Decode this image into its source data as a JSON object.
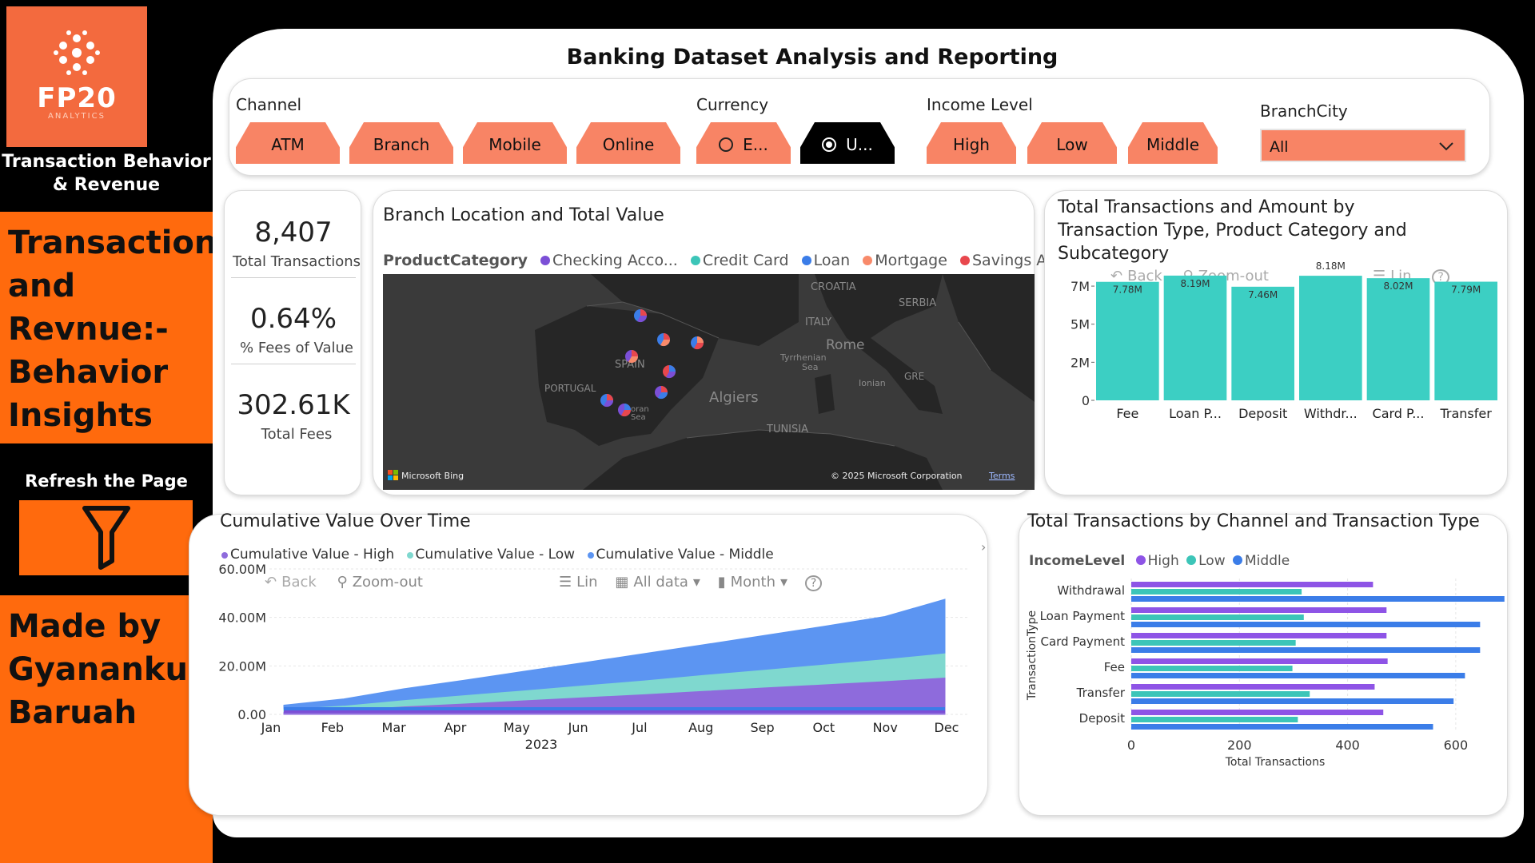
{
  "sidebar": {
    "logo_text": "FP20",
    "logo_sub": "ANALYTICS",
    "brand_line1": "Transaction Behavior",
    "brand_line2": "& Revenue",
    "hero_lines": [
      "Transactions",
      "and Revnue:-",
      "Behavior",
      "Insights"
    ],
    "refresh_label": "Refresh the Page",
    "made_lines": [
      "Made by",
      "Gyanankur",
      "Baruah"
    ]
  },
  "page_title": "Banking Dataset Analysis and Reporting",
  "slicers": {
    "channel": {
      "title": "Channel",
      "options": [
        "ATM",
        "Branch",
        "Mobile",
        "Online"
      ]
    },
    "currency": {
      "title": "Currency",
      "options": [
        "E...",
        "U..."
      ],
      "selected": "U..."
    },
    "income": {
      "title": "Income Level",
      "options": [
        "High",
        "Low",
        "Middle"
      ]
    },
    "branch_city": {
      "title": "BranchCity",
      "value": "All"
    }
  },
  "kpis": [
    {
      "value": "8,407",
      "label": "Total Transactions"
    },
    {
      "value": "0.64%",
      "label": "% Fees of Value"
    },
    {
      "value": "302.61K",
      "label": "Total Fees"
    }
  ],
  "map": {
    "title": "Branch Location and Total Value",
    "legend_title": "ProductCategory",
    "legend": [
      {
        "name": "Checking Acco...",
        "color": "#7b4fd6"
      },
      {
        "name": "Credit Card",
        "color": "#3cc5b8"
      },
      {
        "name": "Loan",
        "color": "#3b7de8"
      },
      {
        "name": "Mortgage",
        "color": "#f88a6a"
      },
      {
        "name": "Savings Account",
        "color": "#e8474d"
      }
    ],
    "labels": {
      "croatia": "CROATIA",
      "serbia": "SERBIA",
      "italy": "ITALY",
      "rome": "Rome",
      "tyrrhenian": "Tyrrhenian",
      "sea": "Sea",
      "spain": "SPAIN",
      "portugal": "PORTUGAL",
      "algiers": "Algiers",
      "tunisia": "TUNISIA",
      "ionian": "Ionian",
      "gre": "GRE",
      "alboran1": "oran",
      "alboran2": "Sea"
    },
    "bing": "Microsoft Bing",
    "copyright": "© 2025 Microsoft Corporation",
    "terms": "Terms"
  },
  "txn_type_chart": {
    "title": "Total Transactions and Amount by Transaction Type, Product Category and Subcategory",
    "toolbar": {
      "back": "Back",
      "zoom_out": "Zoom-out",
      "lin": "Lin",
      "help": "?"
    }
  },
  "cumulative_chart": {
    "title": "Cumulative Value Over Time",
    "toolbar": {
      "back": "Back",
      "zoom_out": "Zoom-out",
      "lin": "Lin",
      "all_data": "All data",
      "month": "Month",
      "help": "?"
    }
  },
  "channel_chart": {
    "title": "Total Transactions by Channel and Transaction Type",
    "legend_title": "IncomeLevel"
  },
  "chart_data": [
    {
      "type": "bar",
      "categories": [
        "Fee",
        "Loan P...",
        "Deposit",
        "Withdr...",
        "Card P...",
        "Transfer"
      ],
      "values": [
        7780000,
        8190000,
        7460000,
        8180000,
        8020000,
        7790000
      ],
      "data_labels": [
        "7.78M",
        "8.19M",
        "7.46M",
        "8.18M",
        "8.02M",
        "7.79M"
      ],
      "y_ticks": [
        "0",
        "2M",
        "5M",
        "7M"
      ],
      "ylim": [
        0,
        8500000
      ],
      "color": "#3ccfc3"
    },
    {
      "type": "area",
      "x": [
        "Jan",
        "Feb",
        "Mar",
        "Apr",
        "May",
        "Jun",
        "Jul",
        "Aug",
        "Sep",
        "Oct",
        "Nov",
        "Dec"
      ],
      "xlabel": "2023",
      "y_ticks": [
        "0.00",
        "20.00M",
        "40.00M",
        "60.00M"
      ],
      "ylim": [
        0,
        60000000
      ],
      "series": [
        {
          "name": "Cumulative Value - High",
          "color": "#8e6bdc",
          "values": [
            0.8,
            1.6,
            3.1,
            4.3,
            5.6,
            6.9,
            8.1,
            9.5,
            10.9,
            12.2,
            13.5,
            15.0
          ]
        },
        {
          "name": "Cumulative Value - Low",
          "color": "#7fd8cf",
          "values": [
            2.0,
            3.4,
            5.7,
            7.7,
            9.7,
            11.8,
            13.8,
            16.1,
            18.2,
            20.4,
            22.6,
            25.0
          ]
        },
        {
          "name": "Cumulative Value - Middle",
          "color": "#5c95f2",
          "values": [
            3.8,
            6.4,
            10.6,
            14.1,
            17.8,
            21.4,
            25.1,
            28.8,
            32.6,
            36.4,
            40.4,
            47.5
          ]
        }
      ],
      "units": "M"
    },
    {
      "type": "bar",
      "orientation": "horizontal",
      "categories": [
        "Withdrawal",
        "Loan Payment",
        "Card Payment",
        "Fee",
        "Transfer",
        "Deposit"
      ],
      "ylabel": "TransactionType",
      "xlabel": "Total Transactions",
      "x_ticks": [
        "0",
        "200",
        "400",
        "600"
      ],
      "xlim": [
        0,
        680
      ],
      "series": [
        {
          "name": "High",
          "color": "#8e54e6",
          "values": [
            447,
            472,
            472,
            474,
            450,
            466
          ]
        },
        {
          "name": "Low",
          "color": "#3cc5b8",
          "values": [
            315,
            319,
            304,
            298,
            330,
            308
          ]
        },
        {
          "name": "Middle",
          "color": "#3b7de8",
          "values": [
            690,
            645,
            645,
            617,
            596,
            558
          ]
        }
      ]
    }
  ]
}
